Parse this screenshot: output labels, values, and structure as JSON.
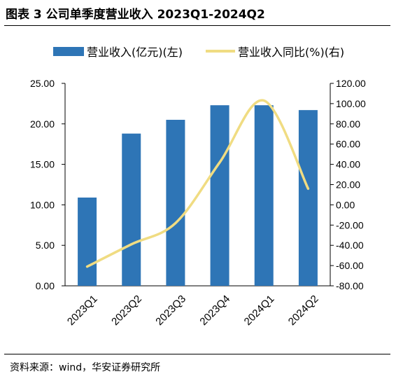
{
  "title": "图表 3 公司单季度营业收入 2023Q1-2024Q2",
  "source": "资料来源：wind，华安证券研究所",
  "colors": {
    "bar": "#2E75B6",
    "line": "#F0DC82"
  },
  "chart_data": {
    "type": "bar+line",
    "categories": [
      "2023Q1",
      "2023Q2",
      "2023Q3",
      "2023Q4",
      "2024Q1",
      "2024Q2"
    ],
    "series": [
      {
        "name": "营业收入(亿元)(左)",
        "type": "bar",
        "axis": "left",
        "values": [
          10.9,
          18.8,
          20.5,
          22.3,
          22.3,
          21.7
        ]
      },
      {
        "name": "营业收入同比(%)(右)",
        "type": "line",
        "axis": "right",
        "values": [
          -61.0,
          -39.0,
          -18.0,
          42.0,
          103.0,
          16.0
        ]
      }
    ],
    "y_left": {
      "range": [
        0,
        25
      ],
      "ticks": [
        "0.00",
        "5.00",
        "10.00",
        "15.00",
        "20.00",
        "25.00"
      ]
    },
    "y_right": {
      "range": [
        -80,
        120
      ],
      "ticks": [
        "-80.00",
        "-60.00",
        "-40.00",
        "-20.00",
        "0.00",
        "20.00",
        "40.00",
        "60.00",
        "80.00",
        "100.00",
        "120.00"
      ]
    },
    "legend_position": "top",
    "grid": false
  }
}
